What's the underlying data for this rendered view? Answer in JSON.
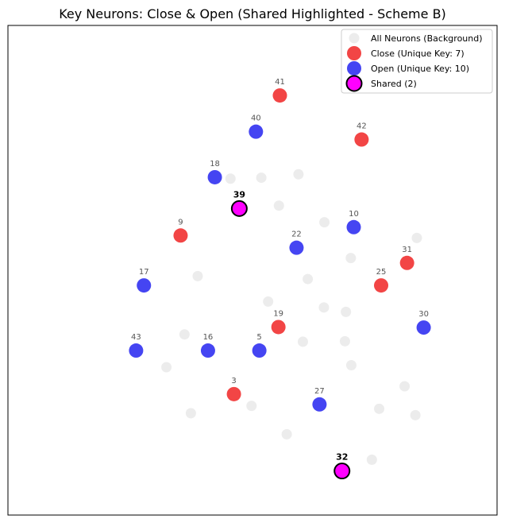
{
  "chart_data": {
    "type": "scatter",
    "title": "Key Neurons: Close & Open (Shared Highlighted - Scheme B)",
    "xlabel": "",
    "ylabel": "",
    "xlim": [
      0,
      100
    ],
    "ylim": [
      0,
      100
    ],
    "grid": false,
    "ticks": false,
    "legend_position": "top-right",
    "colors": {
      "background": "#dddddd",
      "close": "#ee1111",
      "open": "#1111ee",
      "shared": "#ff00ff",
      "shared_edge": "#000000"
    },
    "series": [
      {
        "name": "All Neurons (Background)",
        "key": "background",
        "points": [
          {
            "x": 45.5,
            "y": 68.7
          },
          {
            "x": 51.8,
            "y": 68.9
          },
          {
            "x": 59.4,
            "y": 69.6
          },
          {
            "x": 55.4,
            "y": 63.2
          },
          {
            "x": 64.7,
            "y": 59.8
          },
          {
            "x": 83.6,
            "y": 56.6
          },
          {
            "x": 70.1,
            "y": 52.5
          },
          {
            "x": 38.8,
            "y": 48.8
          },
          {
            "x": 61.3,
            "y": 48.2
          },
          {
            "x": 53.2,
            "y": 43.6
          },
          {
            "x": 64.6,
            "y": 42.4
          },
          {
            "x": 69.1,
            "y": 41.5
          },
          {
            "x": 36.1,
            "y": 36.9
          },
          {
            "x": 60.3,
            "y": 35.4
          },
          {
            "x": 68.9,
            "y": 35.5
          },
          {
            "x": 32.4,
            "y": 30.2
          },
          {
            "x": 70.2,
            "y": 30.6
          },
          {
            "x": 81.1,
            "y": 26.3
          },
          {
            "x": 49.8,
            "y": 22.3
          },
          {
            "x": 37.4,
            "y": 20.8
          },
          {
            "x": 75.9,
            "y": 21.7
          },
          {
            "x": 83.3,
            "y": 20.4
          },
          {
            "x": 57.0,
            "y": 16.5
          },
          {
            "x": 74.4,
            "y": 11.3
          }
        ]
      },
      {
        "name": "Close (Unique Key: 7)",
        "key": "close",
        "points": [
          {
            "x": 55.6,
            "y": 85.7,
            "label": "41"
          },
          {
            "x": 72.3,
            "y": 76.7,
            "label": "42"
          },
          {
            "x": 35.3,
            "y": 57.1,
            "label": "9"
          },
          {
            "x": 81.6,
            "y": 51.5,
            "label": "31"
          },
          {
            "x": 76.3,
            "y": 46.9,
            "label": "25"
          },
          {
            "x": 55.3,
            "y": 38.4,
            "label": "19"
          },
          {
            "x": 46.2,
            "y": 24.7,
            "label": "3"
          }
        ]
      },
      {
        "name": "Open (Unique Key: 10)",
        "key": "open",
        "points": [
          {
            "x": 50.7,
            "y": 78.3,
            "label": "40"
          },
          {
            "x": 42.3,
            "y": 69.0,
            "label": "18"
          },
          {
            "x": 70.7,
            "y": 58.8,
            "label": "10"
          },
          {
            "x": 59.0,
            "y": 54.6,
            "label": "22"
          },
          {
            "x": 27.8,
            "y": 46.9,
            "label": "17"
          },
          {
            "x": 85.0,
            "y": 38.3,
            "label": "30"
          },
          {
            "x": 26.2,
            "y": 33.6,
            "label": "43"
          },
          {
            "x": 40.9,
            "y": 33.6,
            "label": "16"
          },
          {
            "x": 51.4,
            "y": 33.6,
            "label": "5"
          },
          {
            "x": 63.7,
            "y": 22.6,
            "label": "27"
          }
        ]
      },
      {
        "name": "Shared (2)",
        "key": "shared",
        "points": [
          {
            "x": 47.3,
            "y": 62.6,
            "label": "39"
          },
          {
            "x": 68.3,
            "y": 9.0,
            "label": "32"
          }
        ]
      }
    ]
  }
}
